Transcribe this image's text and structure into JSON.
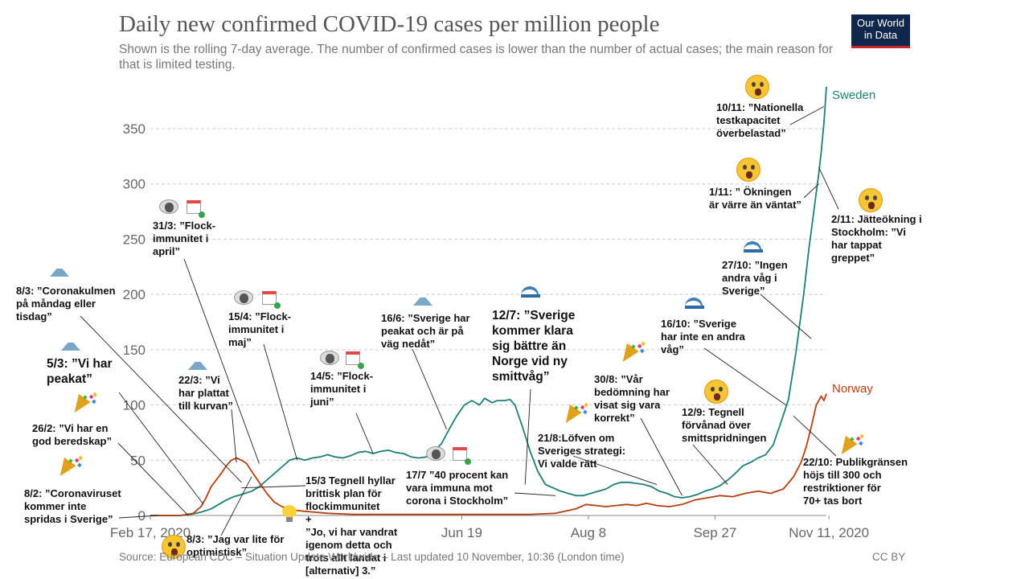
{
  "header": {
    "title": "Daily new confirmed COVID-19 cases per million people",
    "subtitle": "Shown is the rolling 7-day average. The number of confirmed cases is lower than the number of actual cases; the main reason for that is limited testing.",
    "logo_line1": "Our World",
    "logo_line2": "in Data"
  },
  "footer": {
    "source": "Source: European CDC – Situation Update Worldwide – Last updated 10 November, 10:36 (London time)",
    "license": "CC BY"
  },
  "colors": {
    "sweden": "#1e7f77",
    "norway": "#b33e10",
    "grid": "#cccccc",
    "axis": "#888888",
    "text": "#666666"
  },
  "chart_data": {
    "type": "line",
    "title": "Daily new confirmed COVID-19 cases per million people",
    "xlabel": "",
    "ylabel": "",
    "ylim": [
      0,
      390
    ],
    "yticks": [
      0,
      50,
      100,
      150,
      200,
      250,
      300,
      350
    ],
    "xrange_days": [
      0,
      267
    ],
    "xticks": [
      {
        "day": 0,
        "label": "Feb 17, 2020"
      },
      {
        "day": 123,
        "label": "Jun 19"
      },
      {
        "day": 173,
        "label": "Aug 8"
      },
      {
        "day": 223,
        "label": "Sep 27"
      },
      {
        "day": 268,
        "label": "Nov 11, 2020"
      }
    ],
    "x_unit": "days since Feb 17, 2020",
    "series": [
      {
        "name": "Sweden",
        "points": [
          [
            0,
            0
          ],
          [
            12,
            0
          ],
          [
            16,
            1
          ],
          [
            20,
            3
          ],
          [
            24,
            6
          ],
          [
            27,
            10
          ],
          [
            30,
            14
          ],
          [
            33,
            17
          ],
          [
            36,
            19
          ],
          [
            40,
            22
          ],
          [
            43,
            26
          ],
          [
            46,
            32
          ],
          [
            49,
            38
          ],
          [
            52,
            44
          ],
          [
            55,
            50
          ],
          [
            58,
            52
          ],
          [
            61,
            50
          ],
          [
            64,
            52
          ],
          [
            67,
            53
          ],
          [
            70,
            55
          ],
          [
            73,
            53
          ],
          [
            76,
            52
          ],
          [
            79,
            54
          ],
          [
            82,
            57
          ],
          [
            85,
            58
          ],
          [
            88,
            56
          ],
          [
            91,
            58
          ],
          [
            94,
            59
          ],
          [
            97,
            57
          ],
          [
            100,
            56
          ],
          [
            103,
            53
          ],
          [
            106,
            52
          ],
          [
            109,
            53
          ],
          [
            112,
            58
          ],
          [
            115,
            65
          ],
          [
            118,
            78
          ],
          [
            121,
            90
          ],
          [
            124,
            100
          ],
          [
            127,
            104
          ],
          [
            130,
            100
          ],
          [
            132,
            106
          ],
          [
            135,
            102
          ],
          [
            137,
            104
          ],
          [
            140,
            104
          ],
          [
            142,
            105
          ],
          [
            144,
            100
          ],
          [
            147,
            80
          ],
          [
            150,
            58
          ],
          [
            153,
            40
          ],
          [
            156,
            28
          ],
          [
            159,
            25
          ],
          [
            162,
            22
          ],
          [
            165,
            20
          ],
          [
            168,
            18
          ],
          [
            171,
            18
          ],
          [
            174,
            20
          ],
          [
            177,
            22
          ],
          [
            180,
            24
          ],
          [
            183,
            28
          ],
          [
            186,
            30
          ],
          [
            189,
            30
          ],
          [
            192,
            29
          ],
          [
            195,
            28
          ],
          [
            198,
            26
          ],
          [
            201,
            22
          ],
          [
            204,
            20
          ],
          [
            207,
            17
          ],
          [
            210,
            16
          ],
          [
            213,
            17
          ],
          [
            216,
            19
          ],
          [
            219,
            22
          ],
          [
            222,
            24
          ],
          [
            225,
            27
          ],
          [
            228,
            32
          ],
          [
            231,
            38
          ],
          [
            234,
            45
          ],
          [
            237,
            48
          ],
          [
            240,
            52
          ],
          [
            243,
            55
          ],
          [
            246,
            64
          ],
          [
            249,
            84
          ],
          [
            252,
            105
          ],
          [
            255,
            148
          ],
          [
            258,
            200
          ],
          [
            260,
            240
          ],
          [
            262,
            275
          ],
          [
            264,
            310
          ],
          [
            265,
            330
          ],
          [
            266,
            355
          ],
          [
            267,
            388
          ]
        ]
      },
      {
        "name": "Norway",
        "points": [
          [
            0,
            0
          ],
          [
            12,
            0
          ],
          [
            17,
            2
          ],
          [
            20,
            8
          ],
          [
            22,
            16
          ],
          [
            24,
            26
          ],
          [
            26,
            32
          ],
          [
            28,
            38
          ],
          [
            30,
            45
          ],
          [
            32,
            50
          ],
          [
            34,
            52
          ],
          [
            36,
            50
          ],
          [
            38,
            47
          ],
          [
            40,
            40
          ],
          [
            43,
            30
          ],
          [
            46,
            20
          ],
          [
            49,
            12
          ],
          [
            52,
            8
          ],
          [
            56,
            5
          ],
          [
            60,
            4
          ],
          [
            65,
            3
          ],
          [
            70,
            2
          ],
          [
            80,
            1
          ],
          [
            100,
            1
          ],
          [
            130,
            1
          ],
          [
            150,
            1
          ],
          [
            160,
            2
          ],
          [
            168,
            6
          ],
          [
            172,
            10
          ],
          [
            176,
            9
          ],
          [
            180,
            8
          ],
          [
            184,
            9
          ],
          [
            188,
            10
          ],
          [
            192,
            9
          ],
          [
            196,
            11
          ],
          [
            200,
            9
          ],
          [
            205,
            8
          ],
          [
            210,
            10
          ],
          [
            215,
            14
          ],
          [
            220,
            16
          ],
          [
            225,
            18
          ],
          [
            230,
            17
          ],
          [
            235,
            20
          ],
          [
            240,
            22
          ],
          [
            245,
            20
          ],
          [
            250,
            24
          ],
          [
            254,
            35
          ],
          [
            257,
            48
          ],
          [
            259,
            62
          ],
          [
            261,
            80
          ],
          [
            263,
            100
          ],
          [
            265,
            108
          ],
          [
            266,
            104
          ],
          [
            267,
            110
          ]
        ]
      }
    ],
    "annotations": [
      {
        "id": "a1",
        "text": "31/3: ”Flock-\nimmunitet i\napril”",
        "day": 43,
        "value": 47
      },
      {
        "id": "a2",
        "text": "8/3: ”Coronakulmen\npå måndag eller\ntisdag”",
        "day": 36,
        "value": 30
      },
      {
        "id": "a3",
        "text": "15/4: ”Flock-\nimmunitet i\nmaj”",
        "day": 58,
        "value": 50
      },
      {
        "id": "a4",
        "text": "5/3: ”Vi har\npeakat”",
        "day": 21,
        "value": 10
      },
      {
        "id": "a5",
        "text": "22/3: ”Vi\nhar plattat\ntill kurvan”",
        "day": 34,
        "value": 48
      },
      {
        "id": "a6",
        "text": "14/5: ”Flock-\nimmunitet i\njuni”",
        "day": 88,
        "value": 56
      },
      {
        "id": "a7",
        "text": "16/6: ”Sverige har\npeakat och är på\nväg nedåt”",
        "day": 117,
        "value": 78
      },
      {
        "id": "a8",
        "text": "12/7: ”Sverige\nkommer klara\nsig bättre än\nNorge vid ny\nsmittvåg”",
        "day": 148,
        "value": 28
      },
      {
        "id": "a9",
        "text": "26/2: ”Vi har en\ngod beredskap”",
        "day": 15,
        "value": 0
      },
      {
        "id": "a10",
        "text": "8/2: ”Coronaviruset\nkommer inte\nspridas i Sverige”",
        "day": 3,
        "value": 0
      },
      {
        "id": "a11",
        "text": "8/3: ”Jag var lite för\noptimistisk”",
        "day": 40,
        "value": 35
      },
      {
        "id": "a12",
        "text": "15/3 Tegnell hyllar\nbrittisk plan för\nflockimmunitet\n+\n”Jo, vi har vandrat\nigenom detta och\ntrots allt landat i\n[alternativ] 3.”",
        "day": 36,
        "value": 25
      },
      {
        "id": "a13",
        "text": "17/7 ”40 procent kan\nvara immuna mot\ncorona i Stockholm”",
        "day": 160,
        "value": 18
      },
      {
        "id": "a14",
        "text": "21/8:Löfven om\nSveriges strategi:\nVi valde rätt",
        "day": 200,
        "value": 28
      },
      {
        "id": "a15",
        "text": "30/8: ”Vår\nbedömning har\nvisat sig vara\nkorrekt”",
        "day": 210,
        "value": 18
      },
      {
        "id": "a16",
        "text": "12/9: Tegnell\nförvånad över\nsmittspridningen",
        "day": 228,
        "value": 28
      },
      {
        "id": "a17",
        "text": "16/10: ”Sverige\nhar inte en andra\nvåg”",
        "day": 251,
        "value": 100
      },
      {
        "id": "a18",
        "text": "27/10: ”Ingen\nandra våg i\nSverige”",
        "day": 261,
        "value": 160
      },
      {
        "id": "a19",
        "text": "1/11: ” Ökningen\när värre än väntat”",
        "day": 264,
        "value": 300
      },
      {
        "id": "a20",
        "text": "10/11: ”Nationella\ntestkapacitet\növerbelastad”",
        "day": 266,
        "value": 370
      },
      {
        "id": "a21",
        "text": "2/11: Jätteökning i\nStockholm: ”Vi\nhar tappat\ngreppet”",
        "day": 264,
        "value": 315
      },
      {
        "id": "a22",
        "text": "22/10: Publikgränsen\nhöjs till 300 och\nrestriktioner för\n70+ tas bort",
        "day": 254,
        "value": 90
      }
    ]
  }
}
